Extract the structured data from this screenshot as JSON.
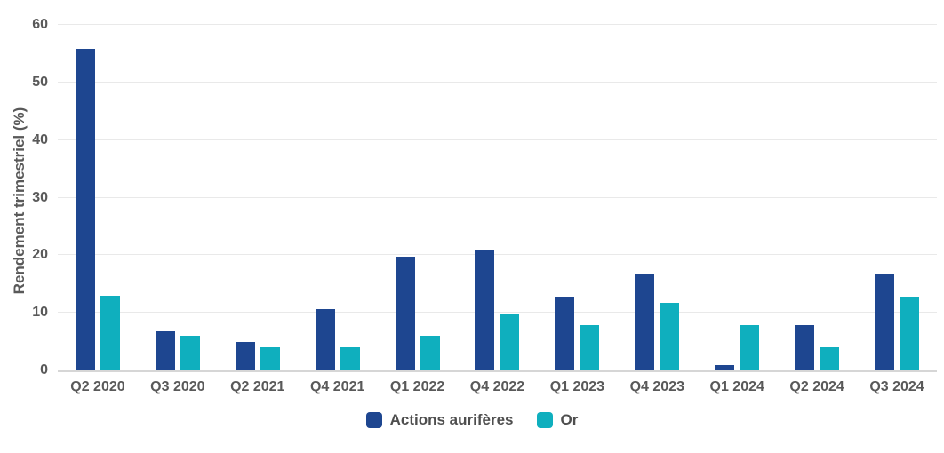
{
  "chart_data": {
    "type": "bar",
    "title": "",
    "xlabel": "",
    "ylabel": "Rendement trimestriel (%)",
    "ylim": [
      0,
      60
    ],
    "y_ticks": [
      0,
      10,
      20,
      30,
      40,
      50,
      60
    ],
    "grid": true,
    "legend_position": "bottom",
    "categories": [
      "Q2 2020",
      "Q3 2020",
      "Q2 2021",
      "Q4 2021",
      "Q1 2022",
      "Q4 2022",
      "Q1 2023",
      "Q4 2023",
      "Q1 2024",
      "Q2 2024",
      "Q3 2024"
    ],
    "series": [
      {
        "name": "Actions aurifères",
        "color": "#1e4690",
        "values": [
          55.8,
          6.8,
          5.0,
          10.7,
          19.8,
          20.8,
          12.8,
          16.8,
          0.9,
          7.9,
          16.8
        ]
      },
      {
        "name": "Or",
        "color": "#0fafbe",
        "values": [
          12.9,
          6.0,
          4.0,
          4.0,
          6.0,
          9.8,
          7.9,
          11.8,
          7.8,
          4.0,
          12.8
        ]
      }
    ]
  },
  "colors": {
    "background": "#ffffff",
    "gridline": "#e9e9e9",
    "axis_line": "#d6d6d6",
    "label_text": "#595959",
    "legend_text": "#4e4e4e",
    "series_actions": "#1e4690",
    "series_or": "#0fafbe"
  }
}
